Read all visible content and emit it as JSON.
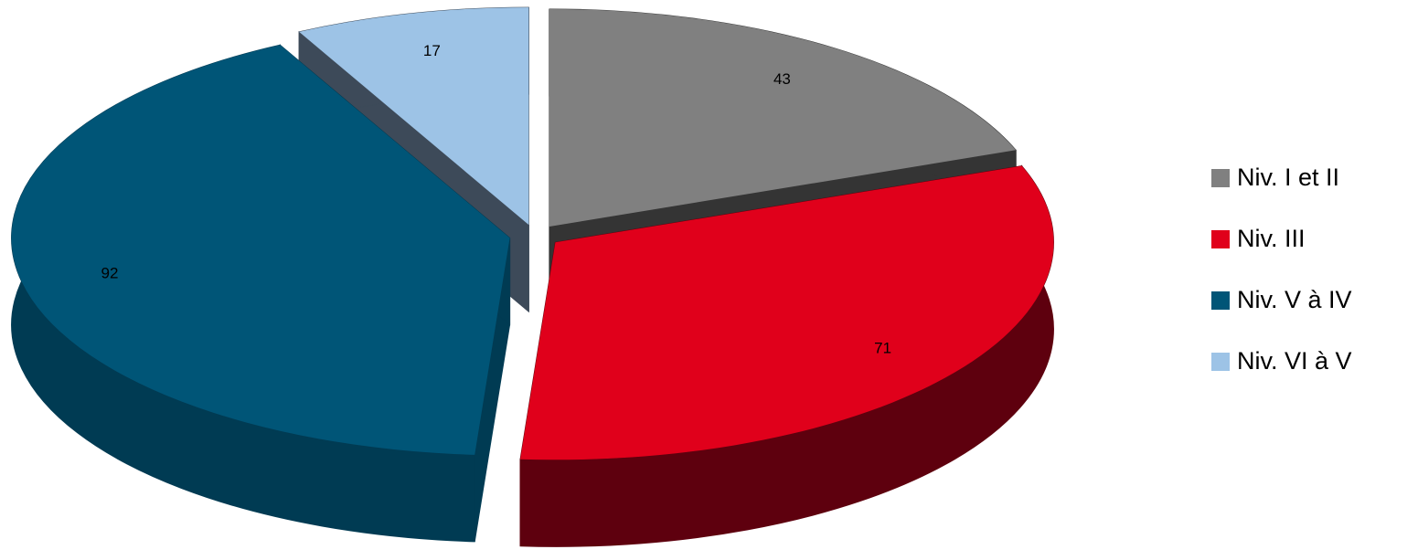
{
  "chart_data": {
    "type": "pie3d",
    "categories": [
      "Niv. I et II",
      "Niv. III",
      "Niv. V à IV",
      "Niv. VI à V"
    ],
    "values": [
      43,
      71,
      92,
      17
    ],
    "colors": [
      "#808080",
      "#e0001b",
      "#005577",
      "#9dc3e6"
    ],
    "side_colors": [
      "#343434",
      "#5e000e",
      "#003b53",
      "#3d4a59"
    ],
    "legend": "right"
  }
}
